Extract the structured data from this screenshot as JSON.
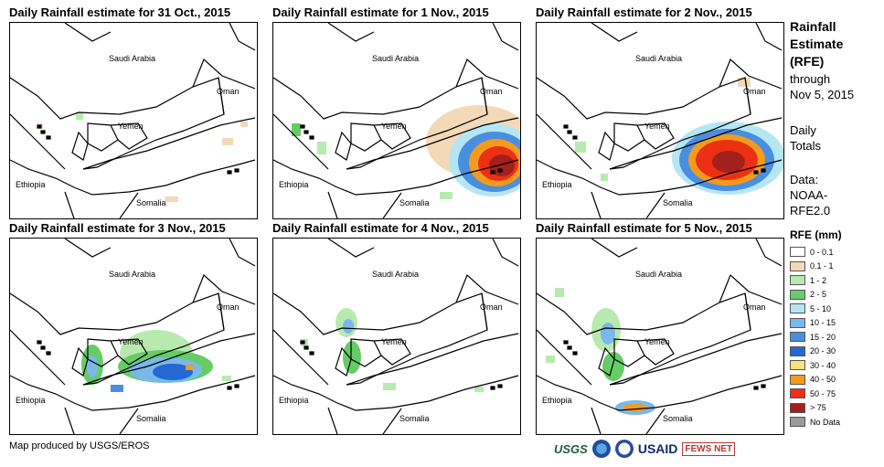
{
  "panels": [
    {
      "title": "Daily Rainfall estimate for 31 Oct., 2015",
      "key": "oct31"
    },
    {
      "title": "Daily Rainfall estimate for 1 Nov., 2015",
      "key": "nov1"
    },
    {
      "title": "Daily Rainfall estimate for 2 Nov., 2015",
      "key": "nov2"
    },
    {
      "title": "Daily Rainfall estimate for 3 Nov., 2015",
      "key": "nov3"
    },
    {
      "title": "Daily Rainfall estimate for 4 Nov., 2015",
      "key": "nov4"
    },
    {
      "title": "Daily Rainfall estimate for 5 Nov., 2015",
      "key": "nov5"
    }
  ],
  "map_labels": {
    "saudi": "Saudi Arabia",
    "oman": "Oman",
    "yemen": "Yemen",
    "ethiopia": "Ethiopia",
    "somalia": "Somalia"
  },
  "sidebar": {
    "title_line1": "Rainfall",
    "title_line2": "Estimate",
    "title_line3": "(RFE)",
    "through_line1": "through",
    "through_line2": "Nov 5, 2015",
    "daily_line1": "Daily",
    "daily_line2": "Totals",
    "data_line1": "Data:",
    "data_line2": "NOAA-",
    "data_line3": "RFE2.0"
  },
  "legend": {
    "title": "RFE (mm)",
    "items": [
      {
        "label": "0 - 0.1",
        "color": "#ffffff"
      },
      {
        "label": "0.1 - 1",
        "color": "#f3d9b8"
      },
      {
        "label": "1 - 2",
        "color": "#b8eab0"
      },
      {
        "label": "2 - 5",
        "color": "#66cc66"
      },
      {
        "label": "5 - 10",
        "color": "#b4e6f4"
      },
      {
        "label": "10 - 15",
        "color": "#7ab8ec"
      },
      {
        "label": "15 - 20",
        "color": "#4a8ee0"
      },
      {
        "label": "20 - 30",
        "color": "#2468d4"
      },
      {
        "label": "30 - 40",
        "color": "#f8e080"
      },
      {
        "label": "40 - 50",
        "color": "#f49a1c"
      },
      {
        "label": "50 - 75",
        "color": "#ec3014"
      },
      {
        "label": "> 75",
        "color": "#a4201c"
      },
      {
        "label": "No Data",
        "color": "#9a9a9a"
      }
    ]
  },
  "credit": "Map produced by USGS/EROS",
  "logos": {
    "usgs": "USGS",
    "usaid": "USAID",
    "fews": "FEWS NET"
  }
}
